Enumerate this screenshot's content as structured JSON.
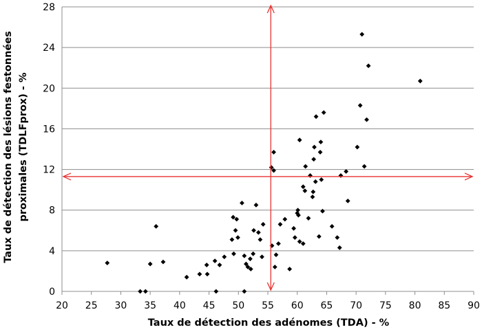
{
  "chart_data": {
    "type": "scatter",
    "title": "",
    "xlabel": "Taux de détection des adénomes (TDA)  - %",
    "ylabel_line1": "Taux de détection des lésions festonnées",
    "ylabel_line2": "proximales (TDLFprox)  - %",
    "xlim": [
      20,
      90
    ],
    "ylim": [
      0,
      28
    ],
    "x_ticks": [
      "20",
      "25",
      "30",
      "35",
      "40",
      "45",
      "50",
      "55",
      "60",
      "65",
      "70",
      "75",
      "80",
      "85",
      "90"
    ],
    "y_ticks": [
      "0",
      "4",
      "8",
      "12",
      "16",
      "20",
      "24",
      "28"
    ],
    "grid": "horizontal",
    "legend": "none",
    "marker_color": "#000000",
    "reference_line_color": "#e8312f",
    "reference_lines": {
      "vertical_x": 55.5,
      "horizontal_y": 11.3
    },
    "points": [
      {
        "x": 27.7,
        "y": 2.8
      },
      {
        "x": 33.3,
        "y": 0.0
      },
      {
        "x": 34.2,
        "y": 0.0
      },
      {
        "x": 35.0,
        "y": 2.7
      },
      {
        "x": 36.0,
        "y": 6.4
      },
      {
        "x": 37.2,
        "y": 2.9
      },
      {
        "x": 41.2,
        "y": 1.4
      },
      {
        "x": 43.4,
        "y": 1.7
      },
      {
        "x": 44.6,
        "y": 2.6
      },
      {
        "x": 44.7,
        "y": 1.7
      },
      {
        "x": 46.0,
        "y": 3.0
      },
      {
        "x": 46.2,
        "y": 0.0
      },
      {
        "x": 46.8,
        "y": 2.6
      },
      {
        "x": 47.6,
        "y": 3.4
      },
      {
        "x": 48.9,
        "y": 5.1
      },
      {
        "x": 49.1,
        "y": 7.3
      },
      {
        "x": 49.2,
        "y": 3.7
      },
      {
        "x": 49.5,
        "y": 6.0
      },
      {
        "x": 49.7,
        "y": 7.1
      },
      {
        "x": 49.9,
        "y": 5.3
      },
      {
        "x": 50.6,
        "y": 8.7
      },
      {
        "x": 51.0,
        "y": 3.5
      },
      {
        "x": 51.0,
        "y": 0.0
      },
      {
        "x": 51.3,
        "y": 2.7
      },
      {
        "x": 51.6,
        "y": 2.4
      },
      {
        "x": 52.0,
        "y": 3.2
      },
      {
        "x": 52.1,
        "y": 2.2
      },
      {
        "x": 52.5,
        "y": 3.7
      },
      {
        "x": 52.6,
        "y": 6.0
      },
      {
        "x": 53.0,
        "y": 8.5
      },
      {
        "x": 53.4,
        "y": 5.8
      },
      {
        "x": 53.7,
        "y": 5.1
      },
      {
        "x": 54.0,
        "y": 3.4
      },
      {
        "x": 54.2,
        "y": 6.6
      },
      {
        "x": 55.6,
        "y": 12.2
      },
      {
        "x": 55.7,
        "y": 4.5
      },
      {
        "x": 56.0,
        "y": 11.9
      },
      {
        "x": 56.0,
        "y": 13.7
      },
      {
        "x": 56.2,
        "y": 2.4
      },
      {
        "x": 56.4,
        "y": 3.6
      },
      {
        "x": 56.8,
        "y": 4.7
      },
      {
        "x": 57.1,
        "y": 6.6
      },
      {
        "x": 57.9,
        "y": 7.1
      },
      {
        "x": 58.7,
        "y": 2.2
      },
      {
        "x": 59.4,
        "y": 6.2
      },
      {
        "x": 59.6,
        "y": 5.3
      },
      {
        "x": 60.0,
        "y": 7.7
      },
      {
        "x": 60.1,
        "y": 8.0
      },
      {
        "x": 60.2,
        "y": 7.5
      },
      {
        "x": 60.4,
        "y": 4.9
      },
      {
        "x": 60.4,
        "y": 14.9
      },
      {
        "x": 61.0,
        "y": 4.7
      },
      {
        "x": 61.0,
        "y": 10.3
      },
      {
        "x": 61.3,
        "y": 9.9
      },
      {
        "x": 61.4,
        "y": 12.3
      },
      {
        "x": 61.9,
        "y": 7.2
      },
      {
        "x": 62.2,
        "y": 11.4
      },
      {
        "x": 62.6,
        "y": 9.3
      },
      {
        "x": 62.7,
        "y": 9.8
      },
      {
        "x": 62.8,
        "y": 13.0
      },
      {
        "x": 62.9,
        "y": 14.2
      },
      {
        "x": 63.1,
        "y": 10.8
      },
      {
        "x": 63.2,
        "y": 17.2
      },
      {
        "x": 63.7,
        "y": 5.4
      },
      {
        "x": 63.9,
        "y": 13.7
      },
      {
        "x": 64.0,
        "y": 14.7
      },
      {
        "x": 64.1,
        "y": 11.0
      },
      {
        "x": 64.3,
        "y": 7.9
      },
      {
        "x": 64.5,
        "y": 17.6
      },
      {
        "x": 65.9,
        "y": 6.4
      },
      {
        "x": 66.8,
        "y": 5.3
      },
      {
        "x": 67.2,
        "y": 4.3
      },
      {
        "x": 67.4,
        "y": 11.4
      },
      {
        "x": 68.3,
        "y": 11.8
      },
      {
        "x": 68.6,
        "y": 8.9
      },
      {
        "x": 70.2,
        "y": 14.2
      },
      {
        "x": 70.7,
        "y": 18.3
      },
      {
        "x": 71.0,
        "y": 25.3
      },
      {
        "x": 71.4,
        "y": 12.3
      },
      {
        "x": 71.8,
        "y": 16.9
      },
      {
        "x": 72.1,
        "y": 22.2
      },
      {
        "x": 80.9,
        "y": 20.7
      }
    ]
  }
}
